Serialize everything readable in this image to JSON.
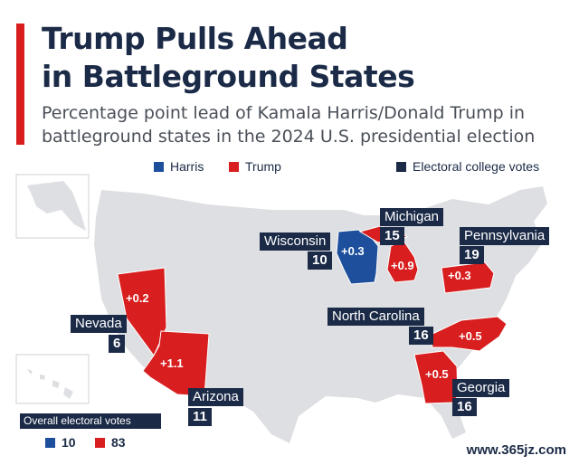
{
  "header": {
    "title_line1": "Trump Pulls Ahead",
    "title_line2": "in Battleground States",
    "subtitle_line1": "Percentage point lead of Kamala Harris/Donald Trump in",
    "subtitle_line2": "battleground states in the 2024 U.S. presidential election"
  },
  "legend": {
    "harris": "Harris",
    "trump": "Trump",
    "electoral": "Electoral college votes"
  },
  "colors": {
    "harris": "#1d4f9c",
    "trump": "#d81e1e",
    "navy": "#1b2a47",
    "land": "#dedfe2"
  },
  "states": {
    "wisconsin": {
      "name": "Wisconsin",
      "votes": "10",
      "lead": "+0.3",
      "leader": "Harris"
    },
    "michigan": {
      "name": "Michigan",
      "votes": "15",
      "lead": "+0.9",
      "leader": "Trump"
    },
    "pennsylvania": {
      "name": "Pennsylvania",
      "votes": "19",
      "lead": "+0.3",
      "leader": "Trump"
    },
    "nevada": {
      "name": "Nevada",
      "votes": "6",
      "lead": "+0.2",
      "leader": "Trump"
    },
    "arizona": {
      "name": "Arizona",
      "votes": "11",
      "lead": "+1.1",
      "leader": "Trump"
    },
    "north_carolina": {
      "name": "North Carolina",
      "votes": "16",
      "lead": "+0.5",
      "leader": "Trump"
    },
    "georgia": {
      "name": "Georgia",
      "votes": "16",
      "lead": "+0.5",
      "leader": "Trump"
    }
  },
  "overall": {
    "title": "Overall electoral votes",
    "harris_votes": "10",
    "trump_votes": "83"
  },
  "watermark": "www.365jz.com"
}
